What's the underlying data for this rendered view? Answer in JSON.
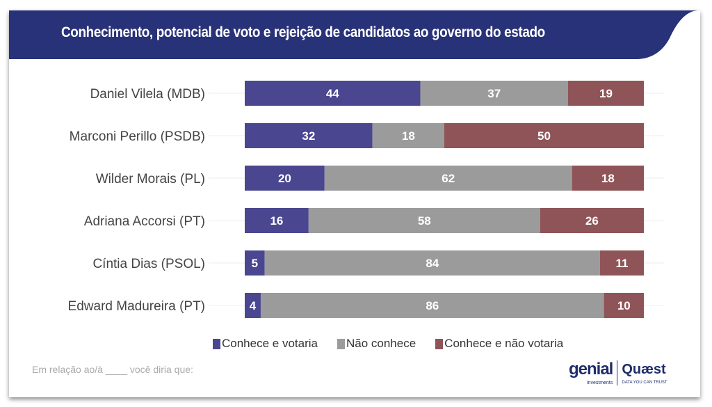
{
  "header": {
    "title": "Conhecimento, potencial de voto e rejeição de candidatos ao governo do estado"
  },
  "colors": {
    "header": "#283278",
    "votaria": "#4b4690",
    "nao_conhece": "#9b9b9b",
    "nao_votaria": "#8f5457"
  },
  "chart_data": {
    "type": "bar",
    "orientation": "horizontal",
    "stacked": true,
    "xlim": [
      0,
      100
    ],
    "categories": [
      "Daniel Vilela (MDB)",
      "Marconi Perillo (PSDB)",
      "Wilder Morais (PL)",
      "Adriana Accorsi (PT)",
      "Cíntia Dias (PSOL)",
      "Edward Madureira (PT)"
    ],
    "series": [
      {
        "name": "Conhece e votaria",
        "values": [
          44,
          32,
          20,
          16,
          5,
          4
        ]
      },
      {
        "name": "Não conhece",
        "values": [
          37,
          18,
          62,
          58,
          84,
          86
        ]
      },
      {
        "name": "Conhece e não votaria",
        "values": [
          19,
          50,
          18,
          26,
          11,
          10
        ]
      }
    ],
    "legend": "bottom"
  },
  "footer": {
    "note": "Em relação ao/à ____ você diria que:",
    "logo_genial": "genial",
    "logo_genial_sub": "investments",
    "logo_quaest": "Quæst",
    "logo_quaest_sub": "DATA YOU CAN TRUST"
  }
}
